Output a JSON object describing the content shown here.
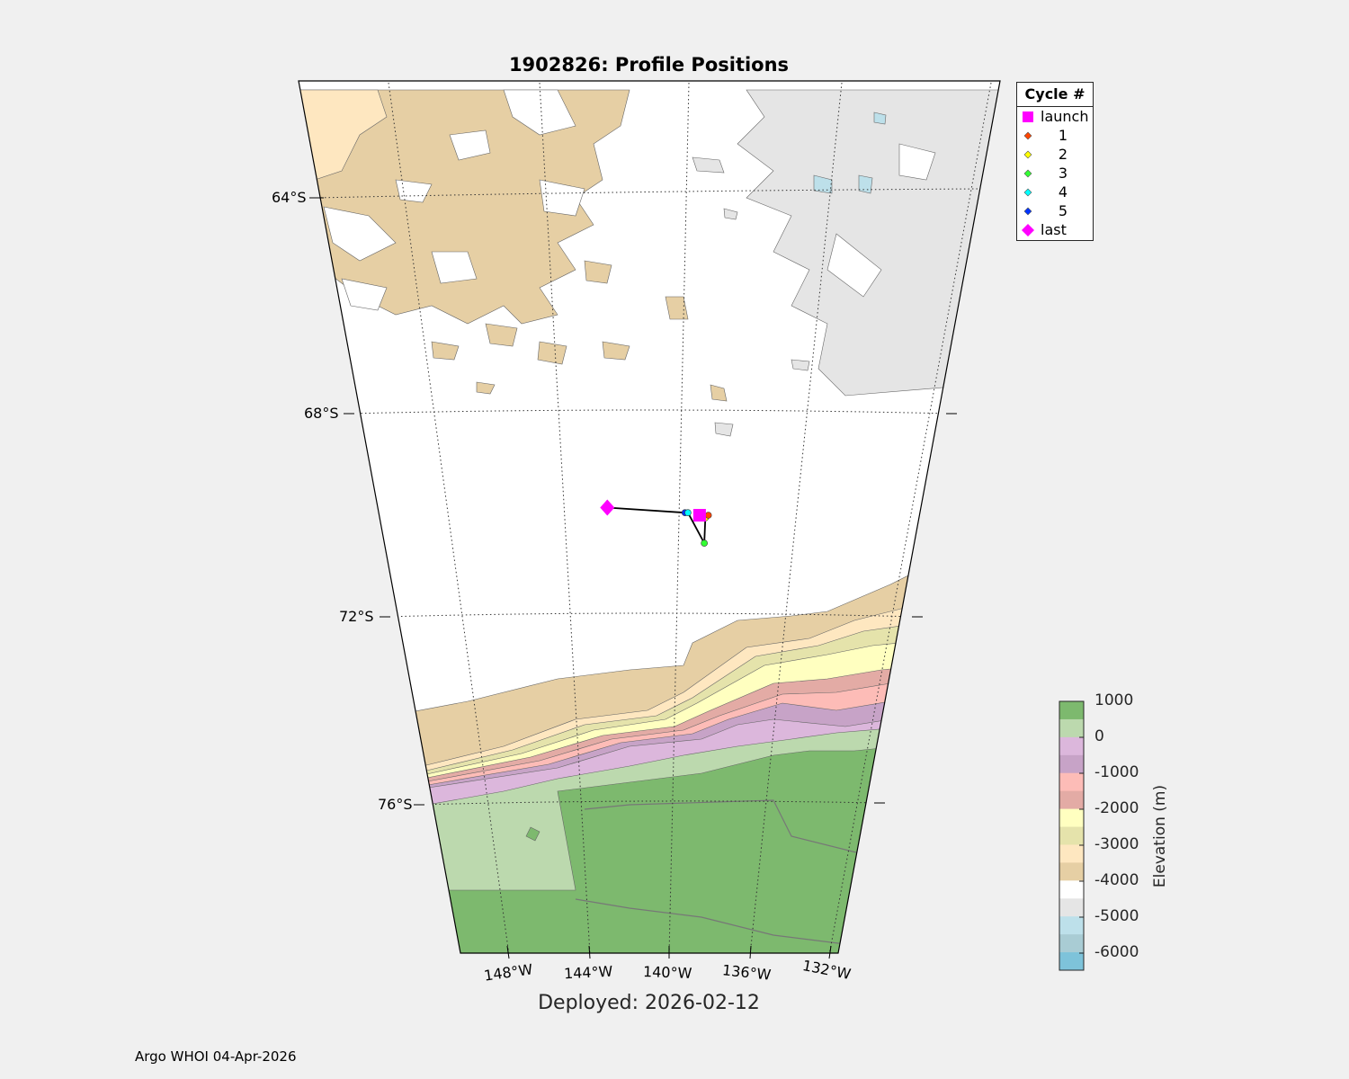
{
  "title": "1902826: Profile Positions",
  "deployed": "Deployed: 2026-02-12",
  "footer": "Argo WHOI 04-Apr-2026",
  "legend": {
    "header": "Cycle #",
    "items": [
      {
        "label": "launch",
        "symbol": "square",
        "color": "#ff00ff"
      },
      {
        "label": "1",
        "symbol": "circle",
        "color": "#ff4500"
      },
      {
        "label": "2",
        "symbol": "circle",
        "color": "#ffff00"
      },
      {
        "label": "3",
        "symbol": "circle",
        "color": "#33ff33"
      },
      {
        "label": "4",
        "symbol": "circle",
        "color": "#00ffff"
      },
      {
        "label": "5",
        "symbol": "circle",
        "color": "#0033ff"
      },
      {
        "label": "last",
        "symbol": "diamond",
        "color": "#ff00ff"
      }
    ]
  },
  "colorbar": {
    "label": "Elevation (m)",
    "ticks": [
      "1000",
      "0",
      "-1000",
      "-2000",
      "-3000",
      "-4000",
      "-5000",
      "-6000"
    ],
    "colors": [
      "#7db96e",
      "#bcd9ae",
      "#dcb7dc",
      "#c7a3c7",
      "#fdbcb7",
      "#e3aba5",
      "#ffffc0",
      "#e5e3ab",
      "#fee7c0",
      "#e6cfa4",
      "#ffffff",
      "#e5e5e5",
      "#bde0ea",
      "#a9ccd4",
      "#7ec3da"
    ]
  },
  "map_axes": {
    "lat_labels": [
      "64°S",
      "68°S",
      "72°S",
      "76°S"
    ],
    "lon_labels": [
      "148°W",
      "144°W",
      "140°W",
      "136°W",
      "132°W"
    ]
  },
  "track": {
    "positions": [
      {
        "cycle": "launch",
        "lon": -139.3,
        "lat": -70.0
      },
      {
        "cycle": "1",
        "lon": -139.0,
        "lat": -70.0
      },
      {
        "cycle": "2",
        "lon": -139.1,
        "lat": -70.05
      },
      {
        "cycle": "3",
        "lon": -139.1,
        "lat": -70.55
      },
      {
        "cycle": "4",
        "lon": -139.7,
        "lat": -69.95
      },
      {
        "cycle": "5",
        "lon": -139.8,
        "lat": -69.95
      },
      {
        "cycle": "last",
        "lon": -142.5,
        "lat": -69.85
      }
    ]
  }
}
